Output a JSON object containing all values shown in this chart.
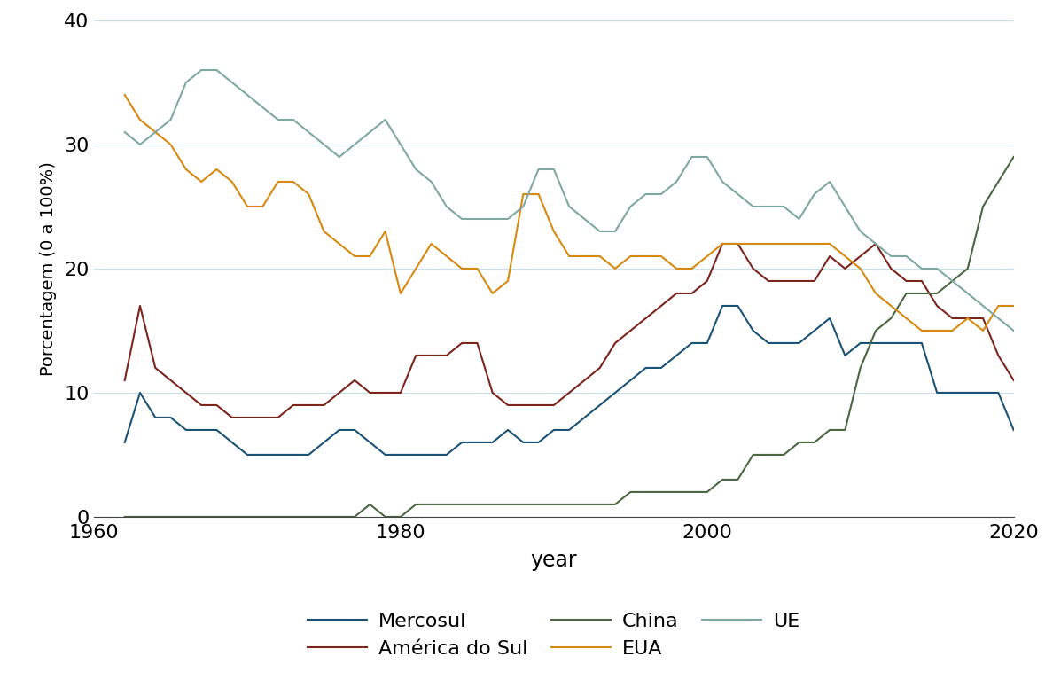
{
  "xlabel": "year",
  "ylabel": "Porcentagem (0 a 100%)",
  "xlim": [
    1960,
    2020
  ],
  "ylim": [
    0,
    40
  ],
  "yticks": [
    0,
    10,
    20,
    30,
    40
  ],
  "xticks": [
    1960,
    1980,
    2000,
    2020
  ],
  "background_color": "#ffffff",
  "grid_color": "#cce0ea",
  "series": {
    "Mercosul": {
      "color": "#1a5276",
      "years": [
        1962,
        1963,
        1964,
        1965,
        1966,
        1967,
        1968,
        1969,
        1970,
        1971,
        1972,
        1973,
        1974,
        1975,
        1976,
        1977,
        1978,
        1979,
        1980,
        1981,
        1982,
        1983,
        1984,
        1985,
        1986,
        1987,
        1988,
        1989,
        1990,
        1991,
        1992,
        1993,
        1994,
        1995,
        1996,
        1997,
        1998,
        1999,
        2000,
        2001,
        2002,
        2003,
        2004,
        2005,
        2006,
        2007,
        2008,
        2009,
        2010,
        2011,
        2012,
        2013,
        2014,
        2015,
        2016,
        2017,
        2018,
        2019,
        2020
      ],
      "values": [
        6,
        10,
        8,
        8,
        7,
        7,
        7,
        6,
        5,
        5,
        5,
        5,
        5,
        6,
        7,
        7,
        6,
        5,
        5,
        5,
        5,
        5,
        6,
        6,
        6,
        7,
        6,
        6,
        7,
        7,
        8,
        9,
        10,
        11,
        12,
        12,
        13,
        14,
        14,
        17,
        17,
        15,
        14,
        14,
        14,
        15,
        16,
        13,
        14,
        14,
        14,
        14,
        14,
        10,
        10,
        10,
        10,
        10,
        7
      ]
    },
    "América do Sul": {
      "color": "#7b241c",
      "years": [
        1962,
        1963,
        1964,
        1965,
        1966,
        1967,
        1968,
        1969,
        1970,
        1971,
        1972,
        1973,
        1974,
        1975,
        1976,
        1977,
        1978,
        1979,
        1980,
        1981,
        1982,
        1983,
        1984,
        1985,
        1986,
        1987,
        1988,
        1989,
        1990,
        1991,
        1992,
        1993,
        1994,
        1995,
        1996,
        1997,
        1998,
        1999,
        2000,
        2001,
        2002,
        2003,
        2004,
        2005,
        2006,
        2007,
        2008,
        2009,
        2010,
        2011,
        2012,
        2013,
        2014,
        2015,
        2016,
        2017,
        2018,
        2019,
        2020
      ],
      "values": [
        11,
        17,
        12,
        11,
        10,
        9,
        9,
        8,
        8,
        8,
        8,
        9,
        9,
        9,
        10,
        11,
        10,
        10,
        10,
        13,
        13,
        13,
        14,
        14,
        10,
        9,
        9,
        9,
        9,
        10,
        11,
        12,
        14,
        15,
        16,
        17,
        18,
        18,
        19,
        22,
        22,
        20,
        19,
        19,
        19,
        19,
        21,
        20,
        21,
        22,
        20,
        19,
        19,
        17,
        16,
        16,
        16,
        13,
        11
      ]
    },
    "China": {
      "color": "#4a6741",
      "years": [
        1962,
        1963,
        1964,
        1965,
        1966,
        1967,
        1968,
        1969,
        1970,
        1971,
        1972,
        1973,
        1974,
        1975,
        1976,
        1977,
        1978,
        1979,
        1980,
        1981,
        1982,
        1983,
        1984,
        1985,
        1986,
        1987,
        1988,
        1989,
        1990,
        1991,
        1992,
        1993,
        1994,
        1995,
        1996,
        1997,
        1998,
        1999,
        2000,
        2001,
        2002,
        2003,
        2004,
        2005,
        2006,
        2007,
        2008,
        2009,
        2010,
        2011,
        2012,
        2013,
        2014,
        2015,
        2016,
        2017,
        2018,
        2019,
        2020
      ],
      "values": [
        0,
        0,
        0,
        0,
        0,
        0,
        0,
        0,
        0,
        0,
        0,
        0,
        0,
        0,
        0,
        0,
        1,
        0,
        0,
        1,
        1,
        1,
        1,
        1,
        1,
        1,
        1,
        1,
        1,
        1,
        1,
        1,
        1,
        2,
        2,
        2,
        2,
        2,
        2,
        3,
        3,
        5,
        5,
        5,
        6,
        6,
        7,
        7,
        12,
        15,
        16,
        18,
        18,
        18,
        19,
        20,
        25,
        27,
        29
      ]
    },
    "EUA": {
      "color": "#d68910",
      "years": [
        1962,
        1963,
        1964,
        1965,
        1966,
        1967,
        1968,
        1969,
        1970,
        1971,
        1972,
        1973,
        1974,
        1975,
        1976,
        1977,
        1978,
        1979,
        1980,
        1981,
        1982,
        1983,
        1984,
        1985,
        1986,
        1987,
        1988,
        1989,
        1990,
        1991,
        1992,
        1993,
        1994,
        1995,
        1996,
        1997,
        1998,
        1999,
        2000,
        2001,
        2002,
        2003,
        2004,
        2005,
        2006,
        2007,
        2008,
        2009,
        2010,
        2011,
        2012,
        2013,
        2014,
        2015,
        2016,
        2017,
        2018,
        2019,
        2020
      ],
      "values": [
        34,
        32,
        31,
        30,
        28,
        27,
        28,
        27,
        25,
        25,
        27,
        27,
        26,
        23,
        22,
        21,
        21,
        23,
        18,
        20,
        22,
        21,
        20,
        20,
        18,
        19,
        26,
        26,
        23,
        21,
        21,
        21,
        20,
        21,
        21,
        21,
        20,
        20,
        21,
        22,
        22,
        22,
        22,
        22,
        22,
        22,
        22,
        21,
        20,
        18,
        17,
        16,
        15,
        15,
        15,
        16,
        15,
        17,
        17
      ]
    },
    "UE": {
      "color": "#7ea8a0",
      "years": [
        1962,
        1963,
        1964,
        1965,
        1966,
        1967,
        1968,
        1969,
        1970,
        1971,
        1972,
        1973,
        1974,
        1975,
        1976,
        1977,
        1978,
        1979,
        1980,
        1981,
        1982,
        1983,
        1984,
        1985,
        1986,
        1987,
        1988,
        1989,
        1990,
        1991,
        1992,
        1993,
        1994,
        1995,
        1996,
        1997,
        1998,
        1999,
        2000,
        2001,
        2002,
        2003,
        2004,
        2005,
        2006,
        2007,
        2008,
        2009,
        2010,
        2011,
        2012,
        2013,
        2014,
        2015,
        2016,
        2017,
        2018,
        2019,
        2020
      ],
      "values": [
        31,
        30,
        31,
        32,
        35,
        36,
        36,
        35,
        34,
        33,
        32,
        32,
        31,
        30,
        29,
        30,
        31,
        32,
        30,
        28,
        27,
        25,
        24,
        24,
        24,
        24,
        25,
        28,
        28,
        25,
        24,
        23,
        23,
        25,
        26,
        26,
        27,
        29,
        29,
        27,
        26,
        25,
        25,
        25,
        24,
        26,
        27,
        25,
        23,
        22,
        21,
        21,
        20,
        20,
        19,
        18,
        17,
        16,
        15
      ]
    }
  },
  "legend_order": [
    "Mercosul",
    "América do Sul",
    "China",
    "EUA",
    "UE"
  ],
  "line_width": 1.5
}
